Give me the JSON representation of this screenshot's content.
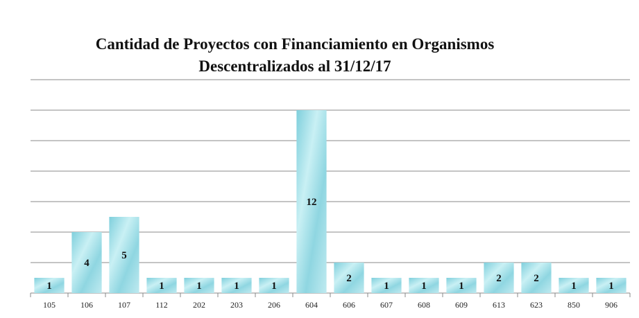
{
  "chart_data": {
    "type": "bar",
    "title_line1": "Cantidad de Proyectos con Financiamiento en Organismos",
    "title_line2": "Descentralizados al 31/12/17",
    "categories": [
      "105",
      "106",
      "107",
      "112",
      "202",
      "203",
      "206",
      "604",
      "606",
      "607",
      "608",
      "609",
      "613",
      "623",
      "850",
      "906"
    ],
    "values": [
      1,
      4,
      5,
      1,
      1,
      1,
      1,
      12,
      2,
      1,
      1,
      1,
      2,
      2,
      1,
      1
    ],
    "ylim": [
      0,
      14
    ],
    "grid": true,
    "legend": false,
    "bar_color": "#a9e3ea"
  }
}
